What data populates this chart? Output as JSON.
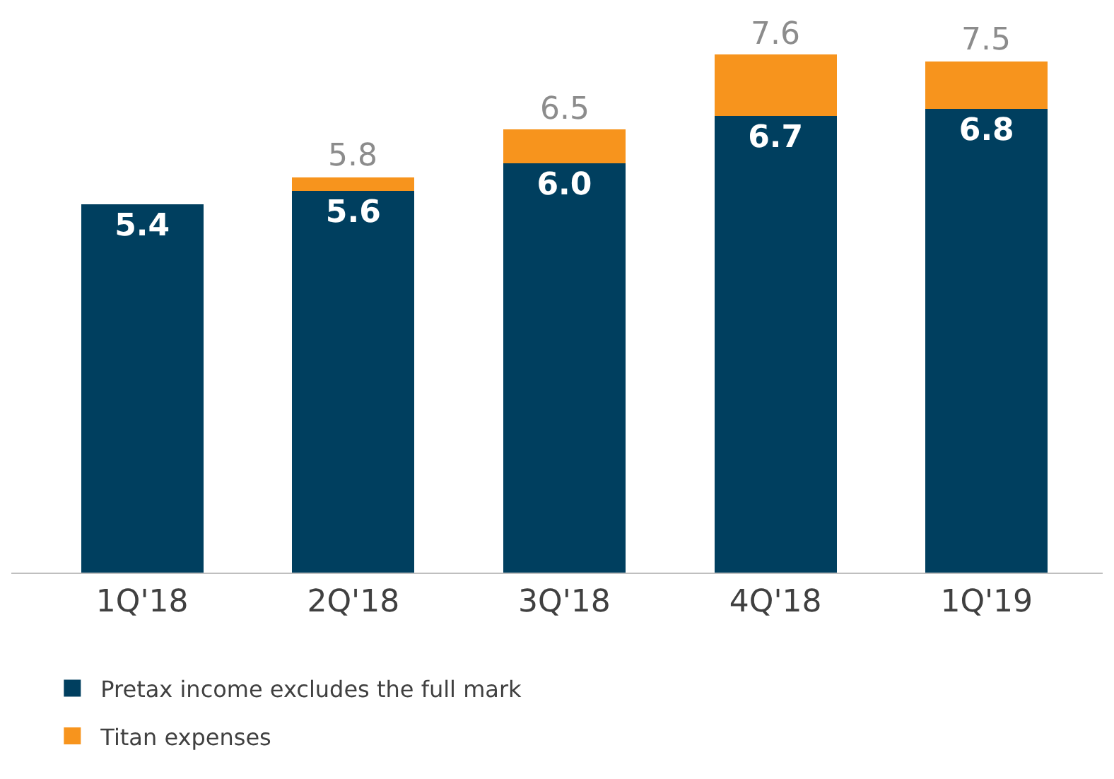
{
  "chart_data": {
    "type": "bar",
    "stacked": true,
    "categories": [
      "1Q'18",
      "2Q'18",
      "3Q'18",
      "4Q'18",
      "1Q'19"
    ],
    "series": [
      {
        "name": "Pretax income excludes the full mark",
        "color": "#003f5f",
        "values": [
          5.4,
          5.6,
          6.0,
          6.7,
          6.8
        ],
        "value_labels": [
          "5.4",
          "5.6",
          "6.0",
          "6.7",
          "6.8"
        ]
      },
      {
        "name": "Titan expenses",
        "color": "#f7941d",
        "values": [
          null,
          0.2,
          0.5,
          0.9,
          0.7
        ]
      }
    ],
    "totals": [
      null,
      "5.8",
      "6.5",
      "7.6",
      "7.5"
    ],
    "ylim": [
      0,
      8.4
    ],
    "tick_labels": "x",
    "legend": "bottom left"
  }
}
